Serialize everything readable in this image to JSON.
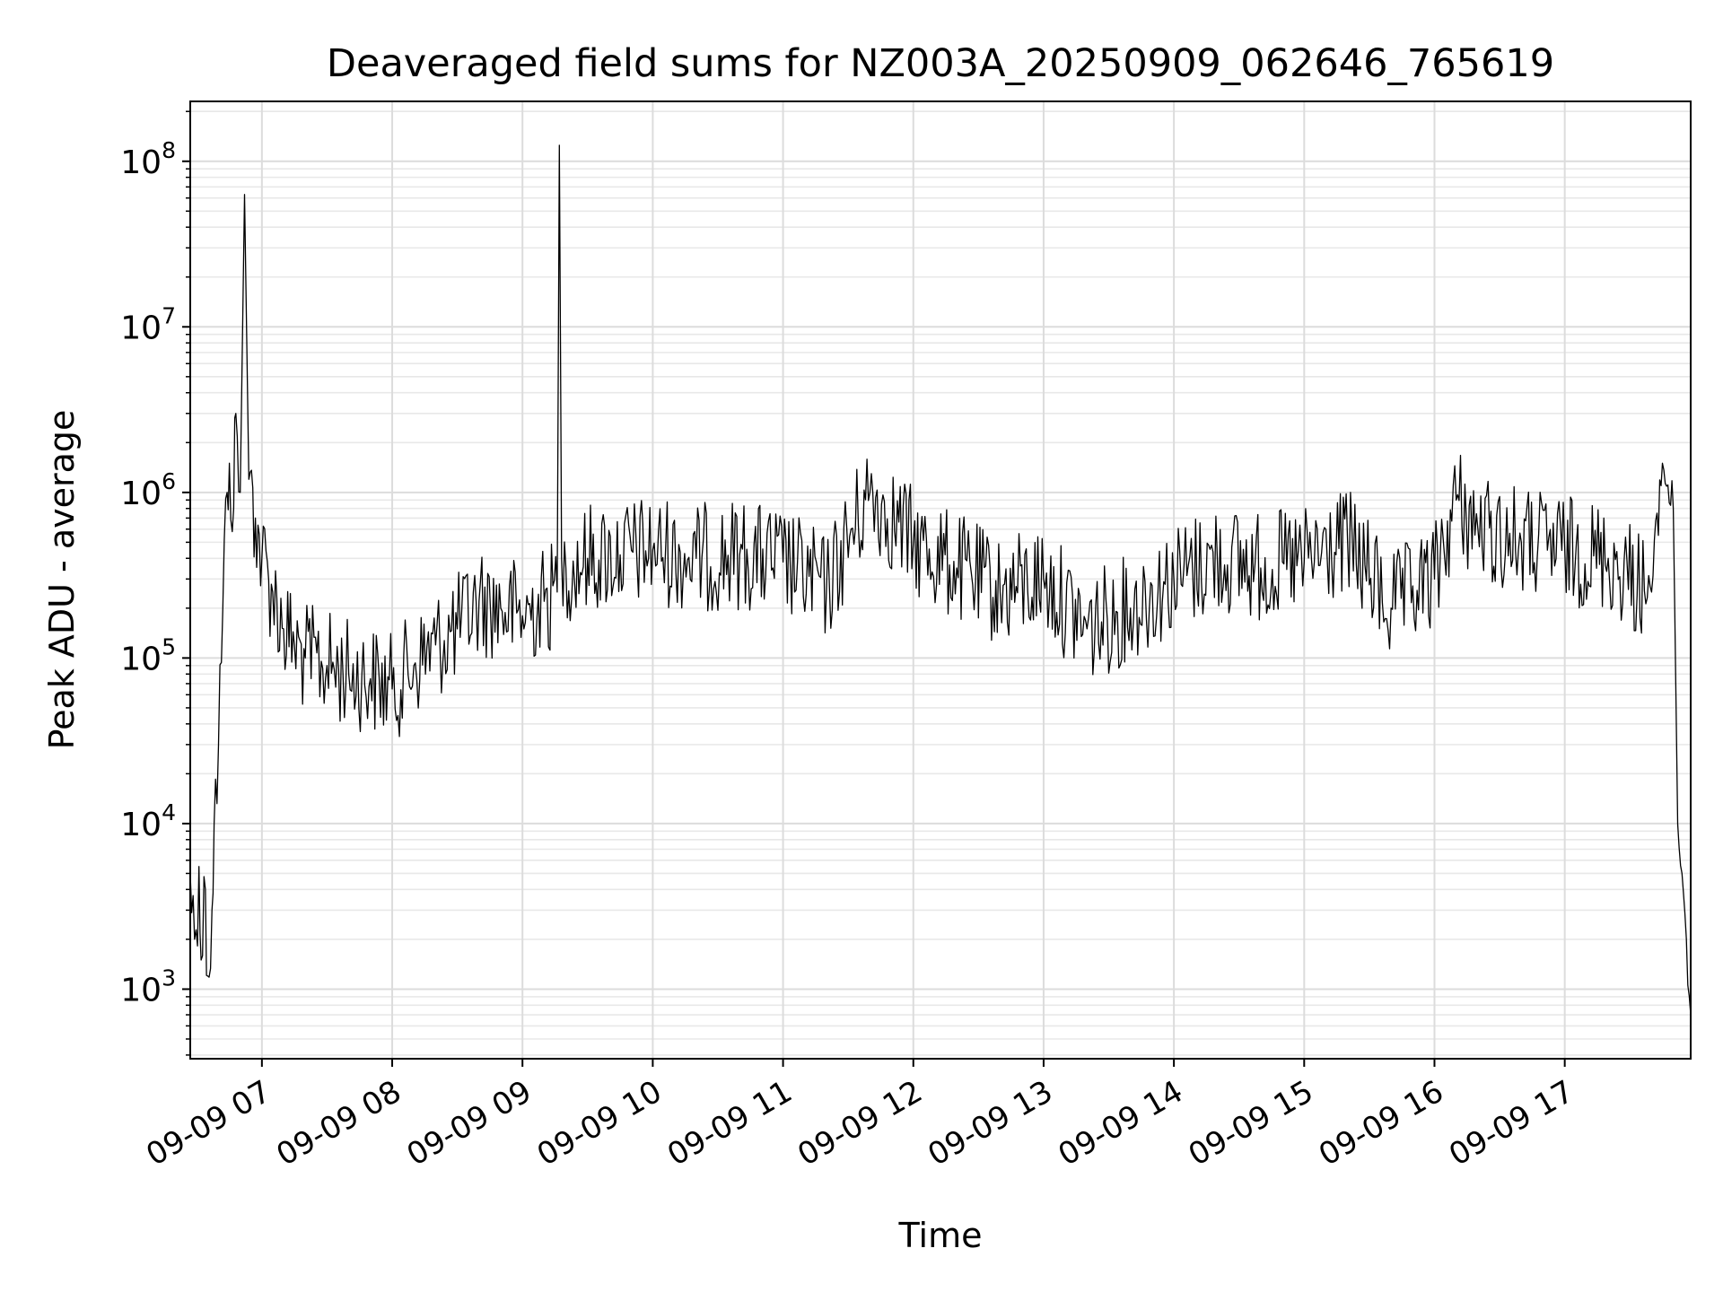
{
  "chart_data": {
    "type": "line",
    "title": "Deaveraged field sums for NZ003A_20250909_062646_765619",
    "xlabel": "Time",
    "ylabel": "Peak ADU - average",
    "yscale": "log",
    "ylim": [
      380,
      230000000
    ],
    "xlim": [
      "2025-09-09 06:27",
      "2025-09-09 17:58"
    ],
    "grid": "major and minor, light grey",
    "x_tick_labels": [
      "09-09 07",
      "09-09 08",
      "09-09 09",
      "09-09 10",
      "09-09 11",
      "09-09 12",
      "09-09 13",
      "09-09 14",
      "09-09 15",
      "09-09 16",
      "09-09 17"
    ],
    "x_ticks": [
      "2025-09-09 07:00",
      "2025-09-09 08:00",
      "2025-09-09 09:00",
      "2025-09-09 10:00",
      "2025-09-09 11:00",
      "2025-09-09 12:00",
      "2025-09-09 13:00",
      "2025-09-09 14:00",
      "2025-09-09 15:00",
      "2025-09-09 16:00",
      "2025-09-09 17:00"
    ],
    "y_tick_labels": [
      {
        "base": "10",
        "exp": "3",
        "value": 1000
      },
      {
        "base": "10",
        "exp": "4",
        "value": 10000
      },
      {
        "base": "10",
        "exp": "5",
        "value": 100000
      },
      {
        "base": "10",
        "exp": "6",
        "value": 1000000
      },
      {
        "base": "10",
        "exp": "7",
        "value": 10000000
      },
      {
        "base": "10",
        "exp": "8",
        "value": 100000000
      }
    ],
    "series": [
      {
        "color": "#000000",
        "x": [
          "2025-09-09 06:27",
          "2025-09-09 06:29",
          "2025-09-09 06:31",
          "2025-09-09 06:32",
          "2025-09-09 06:34",
          "2025-09-09 06:35",
          "2025-09-09 06:37",
          "2025-09-09 06:38",
          "2025-09-09 06:40",
          "2025-09-09 06:42",
          "2025-09-09 06:44",
          "2025-09-09 06:45",
          "2025-09-09 06:47",
          "2025-09-09 06:48",
          "2025-09-09 06:50",
          "2025-09-09 06:52",
          "2025-09-09 06:54",
          "2025-09-09 06:57",
          "2025-09-09 07:00",
          "2025-09-09 07:05",
          "2025-09-09 07:10",
          "2025-09-09 07:15",
          "2025-09-09 07:20",
          "2025-09-09 07:30",
          "2025-09-09 07:40",
          "2025-09-09 07:50",
          "2025-09-09 08:00",
          "2025-09-09 08:10",
          "2025-09-09 08:20",
          "2025-09-09 08:30",
          "2025-09-09 08:40",
          "2025-09-09 08:50",
          "2025-09-09 09:00",
          "2025-09-09 09:10",
          "2025-09-09 09:16",
          "2025-09-09 09:17",
          "2025-09-09 09:18",
          "2025-09-09 09:20",
          "2025-09-09 09:30",
          "2025-09-09 09:45",
          "2025-09-09 10:00",
          "2025-09-09 10:20",
          "2025-09-09 10:40",
          "2025-09-09 11:00",
          "2025-09-09 11:20",
          "2025-09-09 11:40",
          "2025-09-09 12:00",
          "2025-09-09 12:20",
          "2025-09-09 12:40",
          "2025-09-09 13:00",
          "2025-09-09 13:20",
          "2025-09-09 13:40",
          "2025-09-09 14:00",
          "2025-09-09 14:20",
          "2025-09-09 14:40",
          "2025-09-09 15:00",
          "2025-09-09 15:20",
          "2025-09-09 15:40",
          "2025-09-09 16:00",
          "2025-09-09 16:10",
          "2025-09-09 16:20",
          "2025-09-09 16:40",
          "2025-09-09 17:00",
          "2025-09-09 17:20",
          "2025-09-09 17:40",
          "2025-09-09 17:45",
          "2025-09-09 17:50",
          "2025-09-09 17:52",
          "2025-09-09 17:54",
          "2025-09-09 17:56",
          "2025-09-09 17:58"
        ],
        "y": [
          5000,
          2000,
          5500,
          1500,
          4000,
          1200,
          3000,
          10000,
          30000,
          200000,
          1000000,
          1500000,
          800000,
          3000000,
          1000000,
          63000000,
          1200000,
          700000,
          400000,
          250000,
          150000,
          120000,
          100000,
          90000,
          80000,
          75000,
          65000,
          90000,
          120000,
          150000,
          220000,
          200000,
          180000,
          220000,
          250000,
          125000000,
          400000,
          350000,
          400000,
          420000,
          450000,
          400000,
          420000,
          380000,
          260000,
          1000000,
          500000,
          350000,
          250000,
          300000,
          150000,
          200000,
          300000,
          400000,
          350000,
          380000,
          500000,
          200000,
          300000,
          900000,
          600000,
          500000,
          450000,
          400000,
          250000,
          1500000,
          800000,
          10000,
          5000,
          2000,
          700
        ]
      }
    ]
  }
}
